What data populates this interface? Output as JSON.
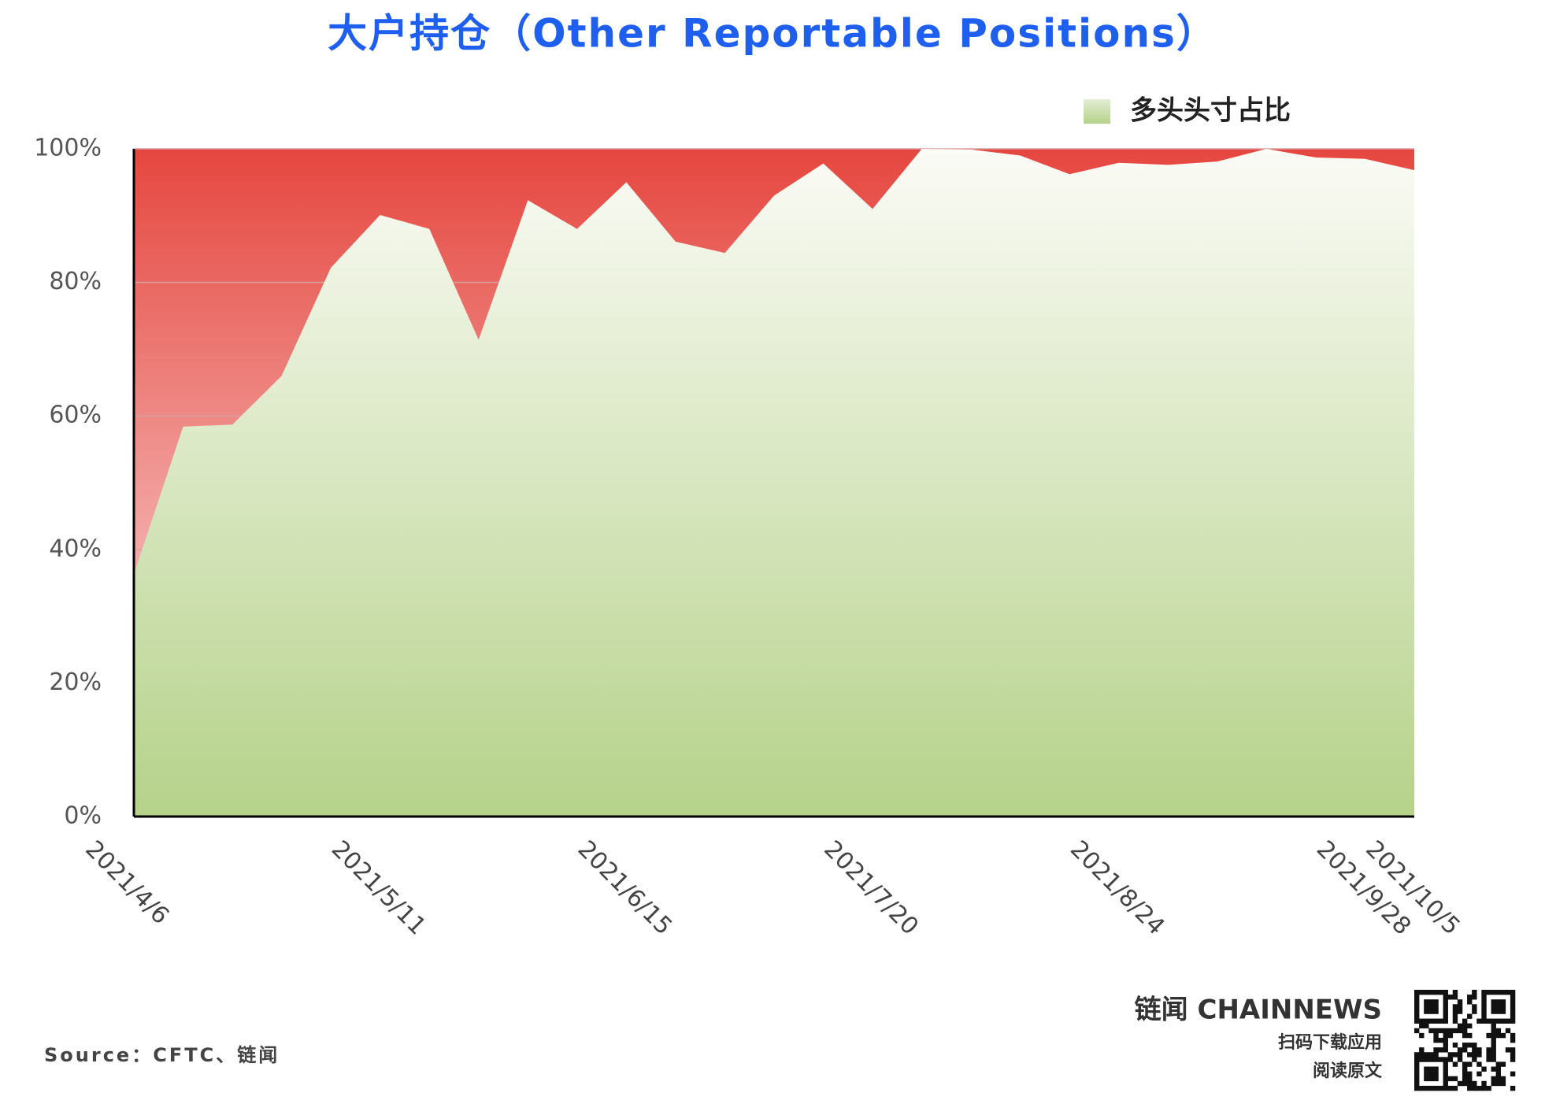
{
  "chart_data": {
    "type": "area",
    "title": "大户持仓（Other Reportable Positions）",
    "categories": [
      "2021/4/6",
      null,
      null,
      null,
      null,
      "2021/5/11",
      null,
      null,
      null,
      null,
      "2021/6/15",
      null,
      null,
      null,
      null,
      "2021/7/20",
      null,
      null,
      null,
      null,
      "2021/8/24",
      null,
      null,
      null,
      null,
      "2021/9/28",
      "2021/10/5"
    ],
    "series": [
      {
        "name": "多头头寸占比",
        "color": "#b5d28a",
        "values": [
          36.3,
          58.4,
          58.7,
          66,
          82.2,
          90.1,
          88,
          71.4,
          92.3,
          88,
          95,
          86.1,
          84.4,
          93,
          97.8,
          91,
          100,
          99.9,
          99,
          96.2,
          97.9,
          97.6,
          98.1,
          100,
          98.7,
          98.5,
          96.8
        ]
      }
    ],
    "ylim": [
      0,
      100
    ],
    "yticks": [
      {
        "value": 0,
        "label": "0%"
      },
      {
        "value": 20,
        "label": "20%"
      },
      {
        "value": 40,
        "label": "40%"
      },
      {
        "value": 60,
        "label": "60%"
      },
      {
        "value": 80,
        "label": "80%"
      },
      {
        "value": 100,
        "label": "100%"
      }
    ],
    "grid": true,
    "legend": "top-right",
    "source": "Source：CFTC、链闻"
  },
  "footer": {
    "brand": "链闻 CHAINNEWS",
    "line1": "扫码下载应用",
    "line2": "阅读原文"
  }
}
